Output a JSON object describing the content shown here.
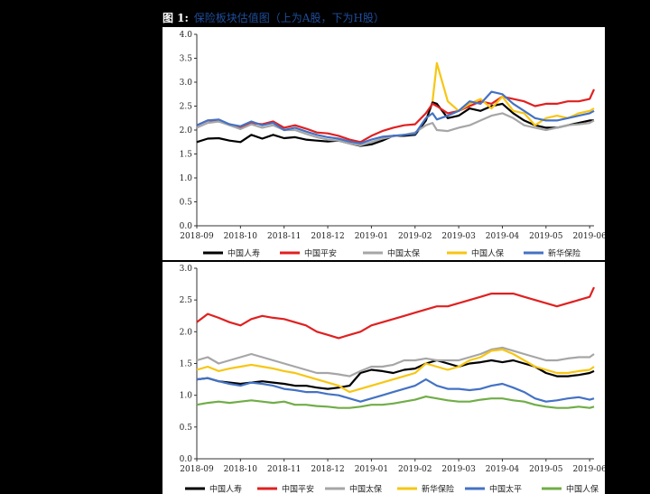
{
  "figure": {
    "tag": "图 1:",
    "title": "保险板块估值图（上为A股，下为H股）"
  },
  "colors": {
    "中国人寿": "#000000",
    "中国平安": "#e02020",
    "中国太保": "#a6a6a6",
    "中国人保": "#f7c613",
    "新华保险": "#4472c4",
    "中国太平": "#4472c4",
    "中国人保H": "#70ad47"
  },
  "chart_data": [
    {
      "type": "line",
      "title": "",
      "xlabel": "",
      "ylabel": "",
      "ylim": [
        0.0,
        4.0
      ],
      "yticks": [
        "0.0",
        "0.5",
        "1.0",
        "1.5",
        "2.0",
        "2.5",
        "3.0",
        "3.5",
        "4.0"
      ],
      "xticks": [
        "2018-09",
        "2018-10",
        "2018-11",
        "2018-12",
        "2019-01",
        "2019-02",
        "2019-03",
        "2019-04",
        "2019-05",
        "2019-06"
      ],
      "grid": false,
      "legend": "bottom",
      "x": [
        0,
        0.25,
        0.5,
        0.75,
        1,
        1.25,
        1.5,
        1.75,
        2,
        2.25,
        2.5,
        2.75,
        3,
        3.25,
        3.5,
        3.75,
        4,
        4.25,
        4.5,
        4.75,
        5,
        5.25,
        5.4,
        5.5,
        5.75,
        6,
        6.25,
        6.5,
        6.75,
        7,
        7.25,
        7.5,
        7.75,
        8,
        8.25,
        8.5,
        8.75,
        9,
        9.1
      ],
      "series": [
        {
          "name": "中国人寿",
          "color": "#000000",
          "values": [
            1.75,
            1.82,
            1.83,
            1.78,
            1.75,
            1.9,
            1.82,
            1.9,
            1.83,
            1.85,
            1.8,
            1.78,
            1.76,
            1.78,
            1.72,
            1.67,
            1.7,
            1.78,
            1.88,
            1.88,
            1.9,
            2.2,
            2.58,
            2.55,
            2.25,
            2.3,
            2.45,
            2.4,
            2.5,
            2.55,
            2.35,
            2.2,
            2.1,
            2.05,
            2.05,
            2.1,
            2.15,
            2.2,
            2.2
          ]
        },
        {
          "name": "中国平安",
          "color": "#e02020",
          "values": [
            2.1,
            2.2,
            2.18,
            2.12,
            2.05,
            2.15,
            2.12,
            2.18,
            2.05,
            2.1,
            2.03,
            1.95,
            1.93,
            1.88,
            1.8,
            1.75,
            1.88,
            1.98,
            2.05,
            2.1,
            2.12,
            2.35,
            2.55,
            2.5,
            2.35,
            2.4,
            2.5,
            2.6,
            2.55,
            2.7,
            2.65,
            2.6,
            2.5,
            2.55,
            2.55,
            2.6,
            2.6,
            2.65,
            2.85
          ]
        },
        {
          "name": "中国太保",
          "color": "#a6a6a6",
          "values": [
            2.05,
            2.15,
            2.18,
            2.1,
            2.02,
            2.12,
            2.05,
            2.1,
            2.0,
            2.0,
            1.92,
            1.85,
            1.8,
            1.78,
            1.72,
            1.68,
            1.75,
            1.82,
            1.87,
            1.9,
            1.95,
            2.1,
            2.15,
            2.0,
            1.98,
            2.05,
            2.1,
            2.2,
            2.3,
            2.35,
            2.25,
            2.1,
            2.05,
            2.0,
            2.05,
            2.1,
            2.12,
            2.15,
            2.2
          ]
        },
        {
          "name": "中国人保",
          "color": "#f7c613",
          "values": [
            null,
            null,
            null,
            null,
            null,
            null,
            null,
            null,
            null,
            null,
            null,
            null,
            null,
            null,
            null,
            null,
            null,
            null,
            null,
            null,
            null,
            null,
            2.6,
            3.4,
            2.6,
            2.4,
            2.55,
            2.65,
            2.45,
            2.7,
            2.4,
            2.35,
            2.1,
            2.25,
            2.3,
            2.25,
            2.35,
            2.4,
            2.45
          ]
        },
        {
          "name": "新华保险",
          "color": "#4472c4",
          "values": [
            2.1,
            2.2,
            2.22,
            2.12,
            2.08,
            2.18,
            2.1,
            2.15,
            2.0,
            2.05,
            1.97,
            1.9,
            1.85,
            1.82,
            1.76,
            1.72,
            1.8,
            1.86,
            1.88,
            1.9,
            1.92,
            2.25,
            2.35,
            2.22,
            2.3,
            2.4,
            2.6,
            2.55,
            2.8,
            2.75,
            2.55,
            2.4,
            2.25,
            2.2,
            2.2,
            2.25,
            2.3,
            2.35,
            2.4
          ]
        }
      ]
    },
    {
      "type": "line",
      "title": "",
      "xlabel": "",
      "ylabel": "",
      "ylim": [
        0.0,
        3.0
      ],
      "yticks": [
        "0.0",
        "0.5",
        "1.0",
        "1.5",
        "2.0",
        "2.5",
        "3.0"
      ],
      "xticks": [
        "2018-09",
        "2018-10",
        "2018-11",
        "2018-12",
        "2019-01",
        "2019-02",
        "2019-03",
        "2019-04",
        "2019-05",
        "2019-06"
      ],
      "grid": false,
      "legend": "bottom",
      "x": [
        0,
        0.25,
        0.5,
        0.75,
        1,
        1.25,
        1.5,
        1.75,
        2,
        2.25,
        2.5,
        2.75,
        3,
        3.25,
        3.5,
        3.75,
        4,
        4.25,
        4.5,
        4.75,
        5,
        5.25,
        5.5,
        5.75,
        6,
        6.25,
        6.5,
        6.75,
        7,
        7.25,
        7.5,
        7.75,
        8,
        8.25,
        8.5,
        8.75,
        9,
        9.1
      ],
      "series": [
        {
          "name": "中国人寿",
          "color": "#000000",
          "values": [
            1.25,
            1.27,
            1.22,
            1.2,
            1.18,
            1.2,
            1.22,
            1.2,
            1.18,
            1.15,
            1.15,
            1.12,
            1.1,
            1.12,
            1.15,
            1.35,
            1.4,
            1.38,
            1.35,
            1.4,
            1.42,
            1.5,
            1.55,
            1.5,
            1.45,
            1.5,
            1.52,
            1.55,
            1.52,
            1.55,
            1.5,
            1.45,
            1.35,
            1.3,
            1.3,
            1.32,
            1.35,
            1.38
          ]
        },
        {
          "name": "中国平安",
          "color": "#e02020",
          "values": [
            2.15,
            2.28,
            2.22,
            2.15,
            2.1,
            2.2,
            2.25,
            2.22,
            2.2,
            2.15,
            2.1,
            2.0,
            1.95,
            1.9,
            1.95,
            2.0,
            2.1,
            2.15,
            2.2,
            2.25,
            2.3,
            2.35,
            2.4,
            2.4,
            2.45,
            2.5,
            2.55,
            2.6,
            2.6,
            2.6,
            2.55,
            2.5,
            2.45,
            2.4,
            2.45,
            2.5,
            2.55,
            2.7
          ]
        },
        {
          "name": "中国太保",
          "color": "#a6a6a6",
          "values": [
            1.55,
            1.6,
            1.5,
            1.55,
            1.6,
            1.65,
            1.6,
            1.55,
            1.5,
            1.45,
            1.4,
            1.35,
            1.35,
            1.33,
            1.3,
            1.38,
            1.45,
            1.45,
            1.48,
            1.55,
            1.55,
            1.58,
            1.55,
            1.55,
            1.55,
            1.6,
            1.65,
            1.72,
            1.75,
            1.7,
            1.65,
            1.6,
            1.55,
            1.55,
            1.58,
            1.6,
            1.6,
            1.65
          ]
        },
        {
          "name": "新华保险",
          "color": "#f7c613",
          "values": [
            1.4,
            1.45,
            1.38,
            1.42,
            1.45,
            1.48,
            1.45,
            1.42,
            1.38,
            1.35,
            1.3,
            1.25,
            1.2,
            1.15,
            1.05,
            1.1,
            1.15,
            1.2,
            1.25,
            1.3,
            1.35,
            1.5,
            1.45,
            1.4,
            1.45,
            1.55,
            1.6,
            1.7,
            1.72,
            1.65,
            1.55,
            1.45,
            1.4,
            1.35,
            1.35,
            1.38,
            1.4,
            1.45
          ]
        },
        {
          "name": "中国太平",
          "color": "#4472c4",
          "values": [
            1.25,
            1.27,
            1.22,
            1.18,
            1.15,
            1.2,
            1.18,
            1.15,
            1.1,
            1.08,
            1.05,
            1.05,
            1.02,
            1.0,
            0.95,
            0.9,
            0.95,
            1.0,
            1.05,
            1.1,
            1.15,
            1.25,
            1.15,
            1.1,
            1.1,
            1.08,
            1.1,
            1.15,
            1.18,
            1.12,
            1.05,
            0.95,
            0.9,
            0.92,
            0.95,
            0.97,
            0.93,
            0.95
          ]
        },
        {
          "name": "中国人保",
          "color": "#70ad47",
          "values": [
            0.85,
            0.88,
            0.9,
            0.88,
            0.9,
            0.92,
            0.9,
            0.88,
            0.9,
            0.85,
            0.85,
            0.83,
            0.82,
            0.8,
            0.8,
            0.82,
            0.85,
            0.85,
            0.87,
            0.9,
            0.93,
            0.98,
            0.95,
            0.92,
            0.9,
            0.9,
            0.93,
            0.95,
            0.95,
            0.92,
            0.9,
            0.85,
            0.82,
            0.8,
            0.8,
            0.82,
            0.8,
            0.82
          ]
        }
      ]
    }
  ]
}
